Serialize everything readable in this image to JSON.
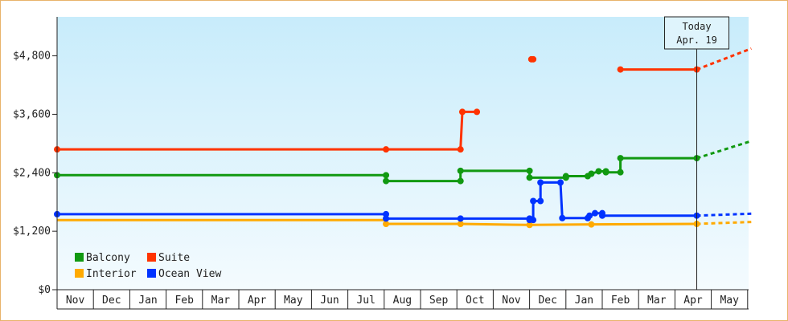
{
  "chart_data": {
    "type": "line",
    "step": true,
    "title": "",
    "xlabel": "",
    "ylabel": "",
    "x_axis": {
      "categories": [
        "Nov",
        "Dec",
        "Jan",
        "Feb",
        "Mar",
        "Apr",
        "May",
        "Jun",
        "Jul",
        "Aug",
        "Sep",
        "Oct",
        "Nov",
        "Dec",
        "Jan",
        "Feb",
        "Mar",
        "Apr",
        "May"
      ],
      "range": [
        0,
        19
      ]
    },
    "y_axis": {
      "ticks": [
        0,
        1200,
        2400,
        3600,
        4800
      ],
      "tick_labels": [
        "$0",
        "$1,200",
        "$2,400",
        "$3,600",
        "$4,800"
      ],
      "ylim": [
        0,
        5600
      ]
    },
    "grid": false,
    "legend_position": "bottom-left",
    "today": {
      "line1": "Today",
      "line2": "Apr. 19",
      "x": 17.6
    },
    "series": [
      {
        "name": "Balcony",
        "color": "#119911",
        "points": [
          [
            0,
            2350
          ],
          [
            9.05,
            2350
          ],
          [
            9.05,
            2230
          ],
          [
            11.1,
            2230
          ],
          [
            11.1,
            2440
          ],
          [
            13.0,
            2440
          ],
          [
            13.0,
            2300
          ],
          [
            14.0,
            2300
          ],
          [
            14.0,
            2330
          ],
          [
            14.6,
            2330
          ],
          [
            14.7,
            2380
          ],
          [
            14.9,
            2430
          ],
          [
            15.1,
            2430
          ],
          [
            15.1,
            2410
          ],
          [
            15.5,
            2410
          ],
          [
            15.5,
            2700
          ],
          [
            17.6,
            2700
          ]
        ],
        "markers": [
          [
            0,
            2350
          ],
          [
            9.05,
            2350
          ],
          [
            9.05,
            2230
          ],
          [
            11.1,
            2230
          ],
          [
            11.1,
            2440
          ],
          [
            13.0,
            2440
          ],
          [
            13.0,
            2300
          ],
          [
            14.0,
            2300
          ],
          [
            14.0,
            2330
          ],
          [
            14.6,
            2330
          ],
          [
            14.7,
            2380
          ],
          [
            14.9,
            2430
          ],
          [
            15.1,
            2430
          ],
          [
            15.1,
            2410
          ],
          [
            15.5,
            2410
          ],
          [
            15.5,
            2700
          ],
          [
            17.6,
            2700
          ]
        ],
        "projection": [
          [
            17.6,
            2700
          ],
          [
            19.1,
            3050
          ]
        ]
      },
      {
        "name": "Suite",
        "color": "#ff3300",
        "points": [
          [
            0,
            2880
          ],
          [
            9.05,
            2880
          ],
          [
            11.1,
            2880
          ],
          [
            11.15,
            3650
          ],
          [
            11.55,
            3650
          ]
        ],
        "markers": [
          [
            0,
            2880
          ],
          [
            9.05,
            2880
          ],
          [
            11.1,
            2880
          ],
          [
            11.15,
            3650
          ],
          [
            11.55,
            3650
          ],
          [
            13.05,
            4730
          ],
          [
            13.1,
            4730
          ],
          [
            15.5,
            4520
          ],
          [
            17.6,
            4520
          ]
        ],
        "extra_segments": [
          [
            [
              13.05,
              4730
            ],
            [
              13.1,
              4730
            ]
          ],
          [
            [
              15.5,
              4520
            ],
            [
              17.6,
              4520
            ]
          ]
        ],
        "projection": [
          [
            17.6,
            4520
          ],
          [
            19.1,
            4950
          ]
        ]
      },
      {
        "name": "Interior",
        "color": "#ffaa00",
        "points": [
          [
            0,
            1430
          ],
          [
            9.05,
            1430
          ],
          [
            9.05,
            1350
          ],
          [
            11.1,
            1350
          ],
          [
            13.0,
            1330
          ],
          [
            14.7,
            1340
          ],
          [
            17.6,
            1350
          ]
        ],
        "markers": [
          [
            9.05,
            1350
          ],
          [
            11.1,
            1350
          ],
          [
            13.0,
            1330
          ],
          [
            14.7,
            1340
          ],
          [
            17.6,
            1350
          ]
        ],
        "projection": [
          [
            17.6,
            1350
          ],
          [
            19.1,
            1390
          ]
        ]
      },
      {
        "name": "Ocean View",
        "color": "#0033ff",
        "points": [
          [
            0,
            1550
          ],
          [
            9.05,
            1550
          ],
          [
            9.05,
            1460
          ],
          [
            11.1,
            1460
          ],
          [
            13.0,
            1460
          ],
          [
            13.0,
            1430
          ],
          [
            13.1,
            1430
          ],
          [
            13.1,
            1820
          ],
          [
            13.3,
            1820
          ],
          [
            13.3,
            2200
          ],
          [
            13.85,
            2200
          ],
          [
            13.9,
            1470
          ],
          [
            14.6,
            1470
          ],
          [
            14.65,
            1520
          ],
          [
            14.8,
            1570
          ],
          [
            15.0,
            1570
          ],
          [
            15.0,
            1520
          ],
          [
            17.6,
            1520
          ]
        ],
        "markers": [
          [
            0,
            1550
          ],
          [
            9.05,
            1550
          ],
          [
            9.05,
            1460
          ],
          [
            11.1,
            1460
          ],
          [
            13.0,
            1460
          ],
          [
            13.0,
            1430
          ],
          [
            13.1,
            1430
          ],
          [
            13.1,
            1820
          ],
          [
            13.3,
            1820
          ],
          [
            13.3,
            2200
          ],
          [
            13.85,
            2200
          ],
          [
            13.9,
            1470
          ],
          [
            14.6,
            1470
          ],
          [
            14.65,
            1520
          ],
          [
            14.8,
            1570
          ],
          [
            15.0,
            1570
          ],
          [
            15.0,
            1520
          ],
          [
            17.6,
            1520
          ]
        ],
        "projection": [
          [
            17.6,
            1520
          ],
          [
            19.1,
            1560
          ]
        ]
      }
    ],
    "legend": [
      {
        "label": "Balcony",
        "color": "#119911"
      },
      {
        "label": "Suite",
        "color": "#ff3300"
      },
      {
        "label": "Interior",
        "color": "#ffaa00"
      },
      {
        "label": "Ocean View",
        "color": "#0033ff"
      }
    ]
  }
}
